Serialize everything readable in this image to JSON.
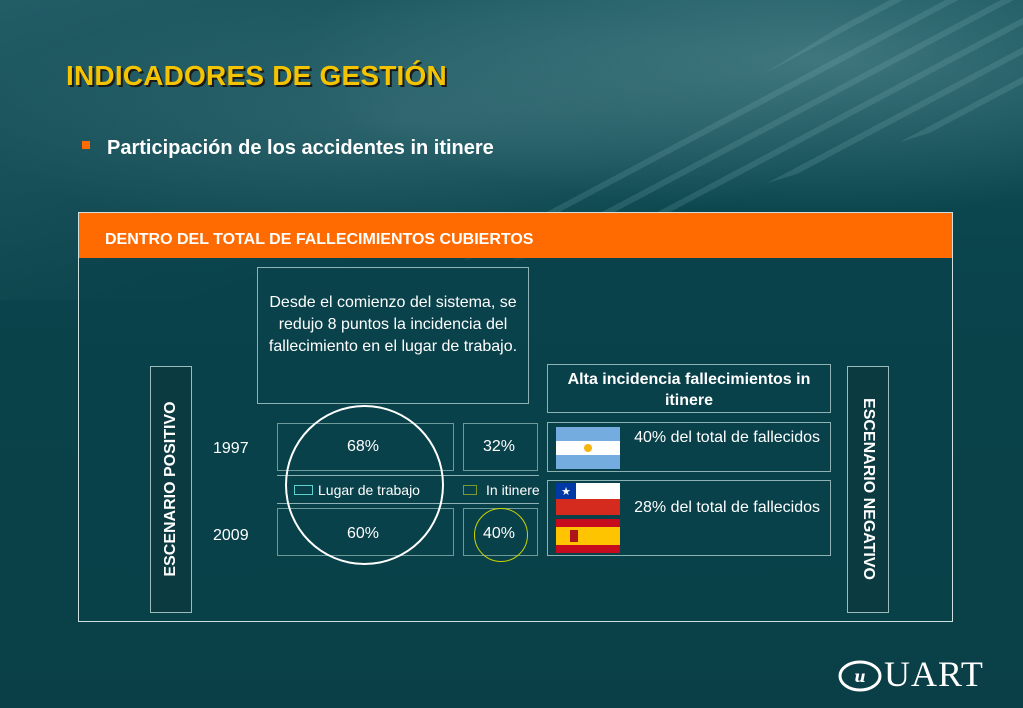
{
  "title": "INDICADORES DE GESTIÓN",
  "subtitle": "Participación de los accidentes in itinere",
  "panel": {
    "header": "DENTRO DEL TOTAL DE FALLECIMIENTOS CUBIERTOS",
    "left_label": "ESCENARIO POSITIVO",
    "right_label": "ESCENARIO NEGATIVO",
    "note": "Desde el comienzo del sistema, se redujo 8 puntos la incidencia del fallecimiento en el lugar de trabajo.",
    "rows": [
      {
        "year": "1997",
        "lugar_de_trabajo": "68%",
        "in_itinere": "32%"
      },
      {
        "year": "2009",
        "lugar_de_trabajo": "60%",
        "in_itinere": "40%"
      }
    ],
    "legend": {
      "lugar_de_trabajo": "Lugar de trabajo",
      "in_itinere": "In itinere"
    },
    "right_title": "Alta incidencia fallecimientos in itinere",
    "right_items": [
      {
        "flags": [
          "argentina-flag-icon"
        ],
        "text": "40% del total de fallecidos"
      },
      {
        "flags": [
          "chile-flag-icon",
          "spain-flag-icon"
        ],
        "text": "28% del total de fallecidos"
      }
    ]
  },
  "logo": {
    "text": "UART"
  },
  "colors": {
    "title": "#f5c400",
    "header_bg": "#ff6b00",
    "bullet": "#ff6a00",
    "background": "#0f4d55",
    "highlight_circle": "#ffffff",
    "itinere_circle": "#c8d400",
    "legend_lugar": "#5fd0d0",
    "legend_itinere": "#7a9a30"
  }
}
